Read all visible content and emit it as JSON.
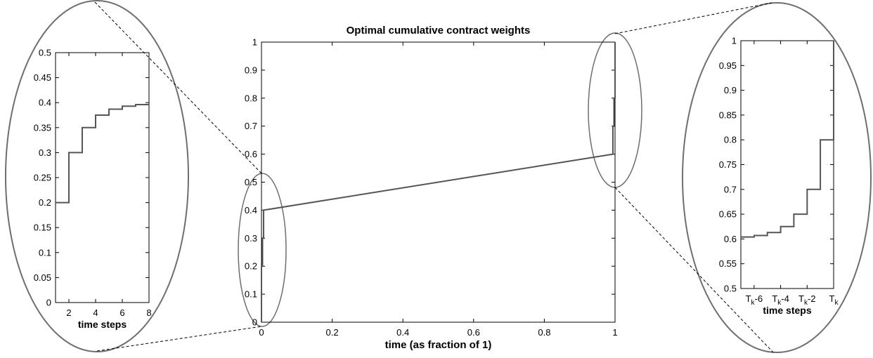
{
  "chart_data": [
    {
      "name": "main",
      "type": "line",
      "title": "Optimal cumulative contract weights",
      "xlabel": "time (as fraction of 1)",
      "ylabel": "",
      "xlim": [
        0,
        1
      ],
      "ylim": [
        0,
        1
      ],
      "x_ticks": [
        0,
        0.2,
        0.4,
        0.6,
        0.8,
        1
      ],
      "x_tick_labels": [
        "0",
        "0.2",
        "0.4",
        "0.6",
        "0.8",
        "1"
      ],
      "y_ticks": [
        0,
        0.1,
        0.2,
        0.3,
        0.4,
        0.5,
        0.6,
        0.7,
        0.8,
        0.9,
        1
      ],
      "y_tick_labels": [
        "0",
        "0.1",
        "0.2",
        "0.3",
        "0.4",
        "0.5",
        "0.6",
        "0.7",
        "0.8",
        "0.9",
        "1"
      ],
      "grid": false,
      "series": [
        {
          "x": [
            0,
            0,
            0.003,
            0.003,
            0.006,
            0.006,
            0.994,
            0.994,
            0.997,
            0.997,
            1,
            1
          ],
          "y": [
            0,
            0.2,
            0.2,
            0.3,
            0.3,
            0.4,
            0.6,
            0.7,
            0.7,
            0.8,
            0.8,
            1
          ]
        }
      ],
      "color": "#555555"
    },
    {
      "name": "zoom-start",
      "type": "line",
      "xlabel": "time steps",
      "ylabel": "",
      "xlim": [
        1,
        8
      ],
      "ylim": [
        0,
        0.5
      ],
      "x_ticks": [
        2,
        4,
        6,
        8
      ],
      "x_tick_labels": [
        "2",
        "4",
        "6",
        "8"
      ],
      "y_ticks": [
        0,
        0.05,
        0.1,
        0.15,
        0.2,
        0.25,
        0.3,
        0.35,
        0.4,
        0.45,
        0.5
      ],
      "y_tick_labels": [
        "0",
        "0.05",
        "0.1",
        "0.15",
        "0.2",
        "0.25",
        "0.3",
        "0.35",
        "0.4",
        "0.45",
        "0.5"
      ],
      "series": [
        {
          "x": [
            1,
            2,
            2,
            3,
            3,
            4,
            4,
            5,
            5,
            6,
            6,
            7,
            7,
            8
          ],
          "y": [
            0.2,
            0.2,
            0.3,
            0.3,
            0.35,
            0.35,
            0.375,
            0.375,
            0.387,
            0.387,
            0.393,
            0.393,
            0.396,
            0.396
          ]
        }
      ],
      "color": "#555555"
    },
    {
      "name": "zoom-end",
      "type": "line",
      "xlabel": "time steps",
      "ylabel": "",
      "xlim": [
        -7,
        0
      ],
      "ylim": [
        0.5,
        1
      ],
      "x_ticks": [
        -6,
        -4,
        -2,
        0
      ],
      "x_tick_labels": [
        "-6",
        "-4",
        "-2",
        ""
      ],
      "x_tick_prefix": "T",
      "x_tick_sub": "k",
      "y_ticks": [
        0.5,
        0.55,
        0.6,
        0.65,
        0.7,
        0.75,
        0.8,
        0.85,
        0.9,
        0.95,
        1
      ],
      "y_tick_labels": [
        "0.5",
        "0.55",
        "0.6",
        "0.65",
        "0.7",
        "0.75",
        "0.8",
        "0.85",
        "0.9",
        "0.95",
        "1"
      ],
      "series": [
        {
          "x": [
            -7,
            -6,
            -6,
            -5,
            -5,
            -4,
            -4,
            -3,
            -3,
            -2,
            -2,
            -1,
            -1,
            0,
            0
          ],
          "y": [
            0.604,
            0.604,
            0.607,
            0.607,
            0.613,
            0.613,
            0.625,
            0.625,
            0.65,
            0.65,
            0.7,
            0.7,
            0.8,
            0.8,
            1
          ]
        }
      ],
      "color": "#555555"
    }
  ]
}
